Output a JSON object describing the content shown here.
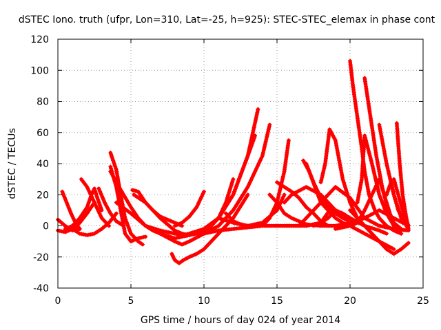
{
  "chart_data": {
    "type": "scatter",
    "title": "dSTEC Iono. truth (ufpr, Lon=310, Lat=-25, h=925): STEC-STEC_elemax in phase cont",
    "xlabel": "GPS time / hours of day 024 of year 2014",
    "ylabel": "dSTEC  / TECUs",
    "xlim": [
      0,
      25
    ],
    "ylim": [
      -40,
      120
    ],
    "xticks": [
      0,
      5,
      10,
      15,
      20,
      25
    ],
    "yticks": [
      -40,
      -20,
      0,
      20,
      40,
      60,
      80,
      100,
      120
    ],
    "grid": true,
    "marker": "plus",
    "color": "#ff0000",
    "series": [
      {
        "x": [
          0.0,
          0.5,
          1.0,
          1.5
        ],
        "y": [
          4,
          0,
          -3,
          -2
        ]
      },
      {
        "x": [
          0.0,
          0.5,
          1.0,
          1.5,
          2.0,
          2.5
        ],
        "y": [
          -3,
          -4,
          -2,
          2,
          8,
          15
        ]
      },
      {
        "x": [
          0.3,
          0.6,
          0.9,
          1.2,
          1.5
        ],
        "y": [
          22,
          15,
          8,
          2,
          -2
        ]
      },
      {
        "x": [
          0.5,
          1.0,
          1.5,
          2.0,
          2.3,
          2.5,
          2.7,
          3.0
        ],
        "y": [
          -2,
          0,
          5,
          12,
          20,
          24,
          18,
          10
        ]
      },
      {
        "x": [
          1.6,
          2.0,
          2.5,
          3.0,
          3.5
        ],
        "y": [
          30,
          25,
          15,
          5,
          0
        ]
      },
      {
        "x": [
          1.0,
          1.5,
          2.0,
          2.5,
          3.0,
          3.5,
          4.0
        ],
        "y": [
          -2,
          -5,
          -6,
          -5,
          -2,
          2,
          8
        ]
      },
      {
        "x": [
          2.8,
          3.2,
          3.6,
          4.0,
          4.5
        ],
        "y": [
          24,
          15,
          8,
          3,
          0
        ]
      },
      {
        "x": [
          3.6,
          4.0,
          4.3,
          4.6,
          5.0,
          5.5,
          5.8
        ],
        "y": [
          47,
          36,
          20,
          5,
          -5,
          -10,
          -12
        ]
      },
      {
        "x": [
          3.6,
          4.0,
          4.3,
          4.6,
          5.0,
          5.5,
          6.0
        ],
        "y": [
          38,
          25,
          10,
          -5,
          -10,
          -8,
          -7
        ]
      },
      {
        "x": [
          5.1,
          5.5,
          6.0,
          6.5,
          7.0,
          7.5,
          8.0,
          8.5
        ],
        "y": [
          23,
          22,
          15,
          10,
          6,
          4,
          2,
          0
        ]
      },
      {
        "x": [
          5.2,
          6.0,
          7.0,
          8.0,
          8.5,
          9.0,
          9.5,
          10.0,
          10.5,
          11.0,
          11.5,
          12.0
        ],
        "y": [
          20,
          15,
          5,
          -3,
          -5,
          -6,
          -5,
          -3,
          0,
          5,
          15,
          30
        ]
      },
      {
        "x": [
          3.6,
          4.0,
          4.5,
          5.0,
          5.5,
          6.0,
          6.5,
          7.0,
          8.0,
          9.0,
          10.0,
          11.0,
          12.0,
          13.0,
          13.7
        ],
        "y": [
          35,
          28,
          20,
          12,
          5,
          0,
          -3,
          -5,
          -8,
          -6,
          -2,
          5,
          20,
          45,
          75
        ]
      },
      {
        "x": [
          4.0,
          5.0,
          6.0,
          7.0,
          8.0,
          8.5,
          9.0,
          10.0,
          11.0,
          12.0,
          13.0,
          14.0,
          14.5
        ],
        "y": [
          15,
          8,
          0,
          -5,
          -10,
          -12,
          -10,
          -5,
          0,
          10,
          25,
          45,
          65
        ]
      },
      {
        "x": [
          6.0,
          7.0,
          8.0,
          8.5,
          9.0,
          10.0,
          11.0,
          12.0,
          13.0,
          13.5
        ],
        "y": [
          0,
          -3,
          -5,
          -6,
          -5,
          -2,
          5,
          20,
          45,
          58
        ]
      },
      {
        "x": [
          7.8,
          8.0,
          8.3,
          8.6,
          9.0,
          9.5,
          10.0,
          10.5,
          11.0,
          12.0,
          13.0
        ],
        "y": [
          -18,
          -22,
          -24,
          -22,
          -20,
          -18,
          -15,
          -10,
          -5,
          5,
          20
        ]
      },
      {
        "x": [
          8.0,
          8.5,
          9.0,
          9.5,
          10.0
        ],
        "y": [
          0,
          2,
          6,
          12,
          22
        ]
      },
      {
        "x": [
          9.0,
          10.0,
          11.0,
          12.0,
          13.0,
          14.0,
          14.5,
          15.0,
          15.5,
          15.8
        ],
        "y": [
          -5,
          -5,
          -3,
          -2,
          -1,
          0,
          5,
          15,
          35,
          55
        ]
      },
      {
        "x": [
          11.0,
          12.0,
          13.0,
          14.0,
          15.0,
          16.0,
          17.0,
          18.0,
          18.6
        ],
        "y": [
          5,
          2,
          0,
          0,
          0,
          0,
          0,
          2,
          10
        ]
      },
      {
        "x": [
          11.5,
          12.0,
          12.5,
          13.0,
          14.0,
          15.0,
          15.5
        ],
        "y": [
          8,
          3,
          1,
          0,
          2,
          10,
          20
        ]
      },
      {
        "x": [
          14.5,
          15.0,
          15.5,
          16.0,
          17.0,
          18.0,
          19.0,
          20.0,
          21.0,
          22.0,
          23.0,
          24.0
        ],
        "y": [
          20,
          15,
          8,
          5,
          1,
          0,
          0,
          2,
          5,
          10,
          5,
          0
        ]
      },
      {
        "x": [
          15.0,
          15.5,
          16.0,
          16.5,
          17.0,
          17.5,
          18.0,
          18.5
        ],
        "y": [
          28,
          25,
          22,
          18,
          12,
          8,
          3,
          0
        ]
      },
      {
        "x": [
          15.5,
          16.0,
          17.0,
          18.0,
          19.0,
          20.0,
          21.0,
          22.0,
          22.5
        ],
        "y": [
          15,
          20,
          25,
          20,
          10,
          5,
          0,
          -3,
          -5
        ]
      },
      {
        "x": [
          16.5,
          17.0,
          18.0,
          19.0,
          20.0,
          21.0,
          22.0,
          23.0,
          24.0
        ],
        "y": [
          0,
          5,
          15,
          25,
          18,
          5,
          0,
          -2,
          -3
        ]
      },
      {
        "x": [
          16.8,
          17.2,
          17.6,
          18.0,
          18.5,
          19.0,
          19.5,
          20.0,
          21.0,
          22.0,
          23.0
        ],
        "y": [
          42,
          35,
          25,
          15,
          10,
          5,
          2,
          0,
          -5,
          -10,
          -15
        ]
      },
      {
        "x": [
          17.0,
          17.5,
          18.0,
          18.5,
          19.0,
          19.5,
          20.0
        ],
        "y": [
          40,
          28,
          18,
          12,
          8,
          5,
          3
        ]
      },
      {
        "x": [
          17.5,
          18.0,
          18.5,
          19.0,
          19.5,
          20.0,
          21.0
        ],
        "y": [
          0,
          2,
          5,
          10,
          8,
          5,
          0
        ]
      },
      {
        "x": [
          18.0,
          18.3,
          18.6,
          19.0,
          19.5,
          20.0,
          20.5,
          21.0
        ],
        "y": [
          28,
          40,
          62,
          55,
          30,
          15,
          5,
          0
        ]
      },
      {
        "x": [
          19.0,
          19.5,
          20.0,
          20.5,
          21.0,
          21.5,
          22.0,
          22.5,
          23.0,
          23.5
        ],
        "y": [
          -2,
          -1,
          0,
          2,
          10,
          20,
          30,
          15,
          0,
          -5
        ]
      },
      {
        "x": [
          20.0,
          20.2,
          20.5,
          20.8,
          21.0,
          21.3,
          21.7,
          22.0,
          22.5,
          23.0,
          23.5
        ],
        "y": [
          106,
          90,
          70,
          50,
          35,
          20,
          10,
          5,
          0,
          -3,
          -5
        ]
      },
      {
        "x": [
          20.5,
          20.8,
          21.0,
          21.5,
          22.0,
          22.5,
          23.0
        ],
        "y": [
          15,
          30,
          58,
          40,
          20,
          8,
          0
        ]
      },
      {
        "x": [
          20.0,
          20.5,
          21.0,
          21.5,
          22.0,
          22.5,
          23.0,
          23.5,
          24.0
        ],
        "y": [
          10,
          5,
          0,
          -5,
          -10,
          -15,
          -18,
          -15,
          -11
        ]
      },
      {
        "x": [
          21.0,
          21.4,
          21.8,
          22.2,
          22.6,
          23.0,
          23.5
        ],
        "y": [
          95,
          70,
          45,
          25,
          10,
          2,
          -2
        ]
      },
      {
        "x": [
          22.0,
          22.5,
          23.0,
          23.5,
          24.0
        ],
        "y": [
          65,
          40,
          20,
          5,
          -2
        ]
      },
      {
        "x": [
          22.5,
          22.8,
          23.0,
          23.3,
          23.6,
          24.0
        ],
        "y": [
          20,
          28,
          20,
          10,
          5,
          0
        ]
      },
      {
        "x": [
          23.2,
          23.4,
          23.6,
          23.8,
          24.0
        ],
        "y": [
          66,
          40,
          20,
          8,
          -2
        ]
      },
      {
        "x": [
          23.0,
          23.3,
          23.6,
          24.0
        ],
        "y": [
          30,
          20,
          10,
          0
        ]
      }
    ]
  }
}
